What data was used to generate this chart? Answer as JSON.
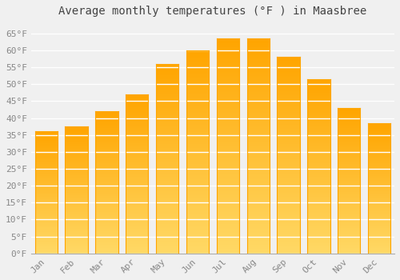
{
  "title": "Average monthly temperatures (°F ) in Maasbree",
  "months": [
    "Jan",
    "Feb",
    "Mar",
    "Apr",
    "May",
    "Jun",
    "Jul",
    "Aug",
    "Sep",
    "Oct",
    "Nov",
    "Dec"
  ],
  "values": [
    36,
    37.5,
    42,
    47,
    56,
    60,
    63.5,
    63.5,
    58,
    51.5,
    43,
    38.5
  ],
  "bar_color_top": "#FFA500",
  "bar_color_bottom": "#FFD966",
  "ylim": [
    0,
    68
  ],
  "yticks": [
    0,
    5,
    10,
    15,
    20,
    25,
    30,
    35,
    40,
    45,
    50,
    55,
    60,
    65
  ],
  "ytick_labels": [
    "0°F",
    "5°F",
    "10°F",
    "15°F",
    "20°F",
    "25°F",
    "30°F",
    "35°F",
    "40°F",
    "45°F",
    "50°F",
    "55°F",
    "60°F",
    "65°F"
  ],
  "background_color": "#f0f0f0",
  "grid_color": "#ffffff",
  "title_fontsize": 10,
  "tick_fontsize": 8,
  "font_family": "monospace"
}
